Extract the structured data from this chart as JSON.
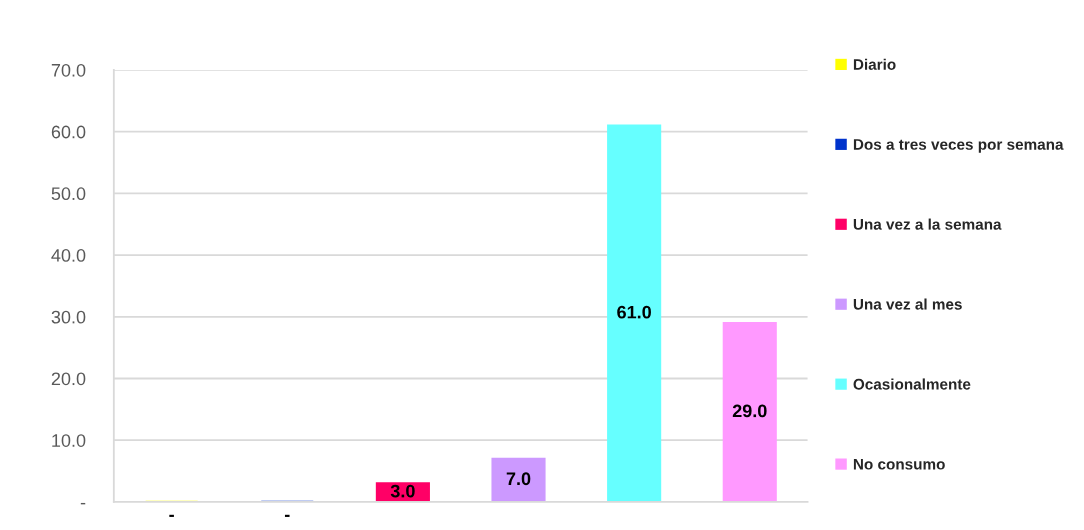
{
  "chart_data": {
    "type": "bar",
    "categories": [
      null,
      null,
      null,
      null,
      null,
      null
    ],
    "series": [
      {
        "name": "Diario",
        "color": "#ffff00",
        "values": [
          0,
          null,
          null,
          null,
          null,
          null
        ],
        "value_labels": [
          "-",
          null,
          null,
          null,
          null,
          null
        ]
      },
      {
        "name": "Dos a tres veces por semana",
        "color": "#0033cc",
        "values": [
          null,
          0,
          null,
          null,
          null,
          null
        ],
        "value_labels": [
          null,
          "-",
          null,
          null,
          null,
          null
        ]
      },
      {
        "name": "Una vez a la semana",
        "color": "#ff0066",
        "values": [
          null,
          null,
          3,
          null,
          null,
          null
        ],
        "value_labels": [
          null,
          null,
          "3.0",
          null,
          null,
          null
        ]
      },
      {
        "name": "Una vez al mes",
        "color": "#cc99ff",
        "values": [
          null,
          null,
          null,
          7,
          null,
          null
        ],
        "value_labels": [
          null,
          null,
          null,
          "7.0",
          null,
          null
        ]
      },
      {
        "name": "Ocasionalmente",
        "color": "#66ffff",
        "values": [
          null,
          null,
          null,
          null,
          61,
          null
        ],
        "value_labels": [
          null,
          null,
          null,
          null,
          "61.0",
          null
        ]
      },
      {
        "name": "No consumo",
        "color": "#ff99ff",
        "values": [
          null,
          null,
          null,
          null,
          null,
          29
        ],
        "value_labels": [
          null,
          null,
          null,
          null,
          null,
          "29.0"
        ]
      }
    ],
    "ylim": [
      0,
      70
    ],
    "yticks": [
      {
        "value": 0,
        "label": "-"
      },
      {
        "value": 10,
        "label": "10.0"
      },
      {
        "value": 20,
        "label": "20.0"
      },
      {
        "value": 30,
        "label": "30.0"
      },
      {
        "value": 40,
        "label": "40.0"
      },
      {
        "value": 50,
        "label": "50.0"
      },
      {
        "value": 60,
        "label": "60.0"
      },
      {
        "value": 70,
        "label": "70.0"
      }
    ],
    "grid": "y",
    "legend": "right",
    "tick_labels": "y"
  }
}
